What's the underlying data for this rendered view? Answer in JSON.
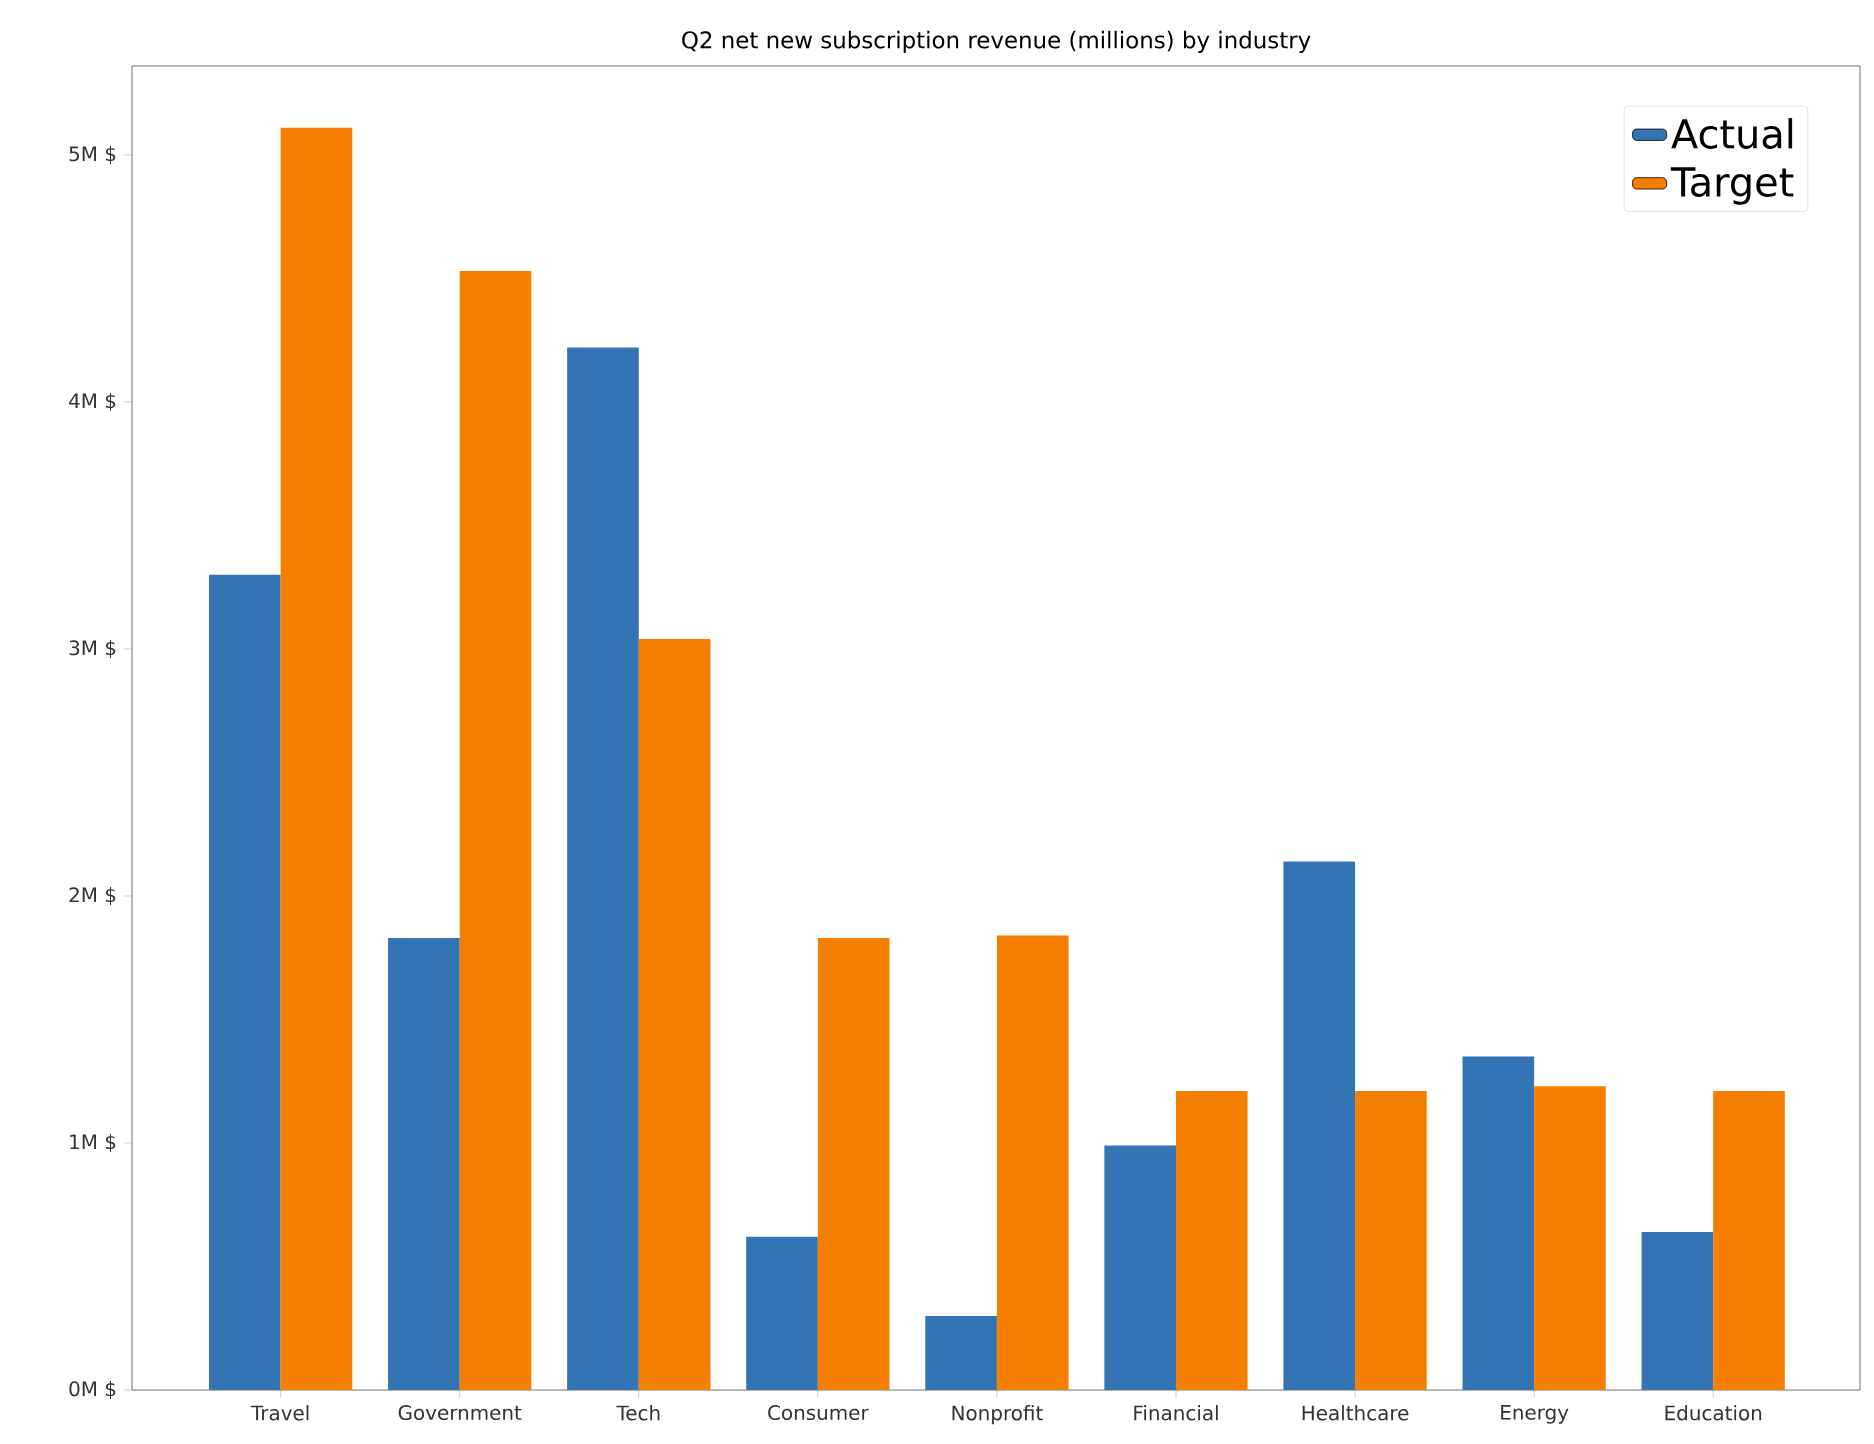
{
  "chart_data": {
    "type": "bar",
    "title": "Q2 net new subscription revenue (millions) by industry",
    "categories": [
      "Travel",
      "Government",
      "Tech",
      "Consumer",
      "Nonprofit",
      "Financial",
      "Healthcare",
      "Energy",
      "Education"
    ],
    "series": [
      {
        "name": "Actual",
        "color": "#3274b4",
        "values": [
          3.3,
          1.83,
          4.22,
          0.62,
          0.3,
          0.99,
          2.14,
          1.35,
          0.64
        ]
      },
      {
        "name": "Target",
        "color": "#f57f00",
        "values": [
          5.11,
          4.53,
          3.04,
          1.83,
          1.84,
          1.21,
          1.21,
          1.23,
          1.21
        ]
      }
    ],
    "ylim": [
      0,
      5.36
    ],
    "yticks": [
      {
        "value": 0,
        "label": "0M $"
      },
      {
        "value": 1,
        "label": "1M $"
      },
      {
        "value": 2,
        "label": "2M $"
      },
      {
        "value": 3,
        "label": "3M $"
      },
      {
        "value": 4,
        "label": "4M $"
      },
      {
        "value": 5,
        "label": "5M $"
      }
    ],
    "legend": "top right"
  }
}
